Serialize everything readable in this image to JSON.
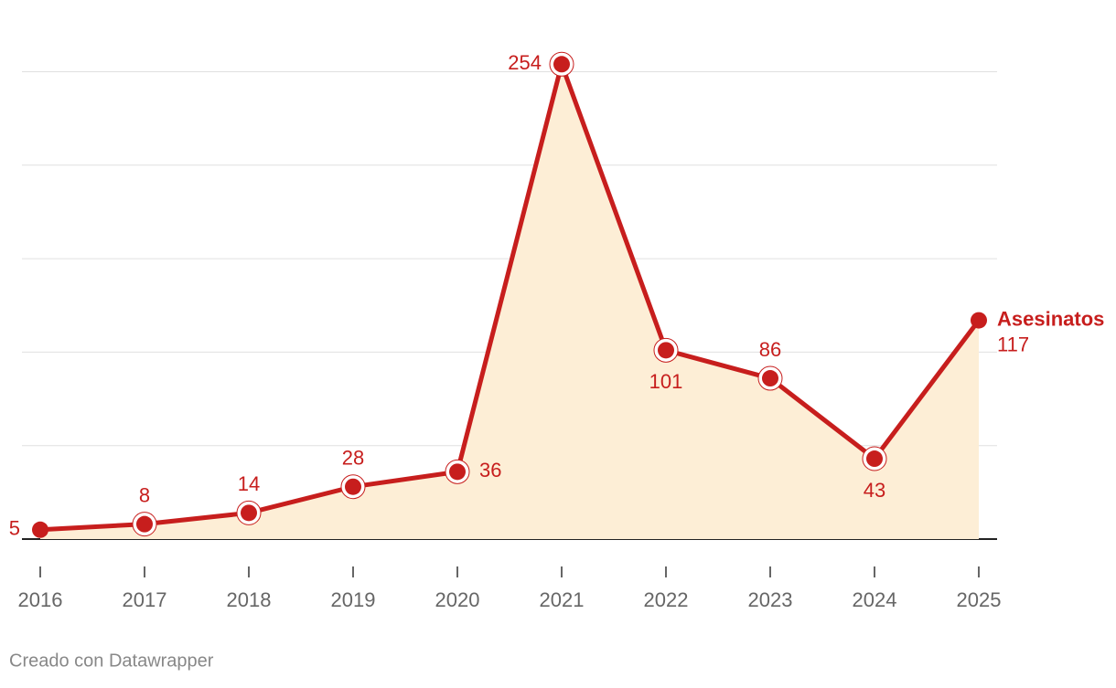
{
  "chart_data": {
    "type": "line",
    "categories": [
      "2016",
      "2017",
      "2018",
      "2019",
      "2020",
      "2021",
      "2022",
      "2023",
      "2024",
      "2025"
    ],
    "series": [
      {
        "name": "Asesinatos",
        "color": "#c71e1d",
        "area_color": "#fdeed6",
        "values": [
          5,
          8,
          14,
          28,
          36,
          254,
          101,
          86,
          43,
          117
        ]
      }
    ],
    "ylim": [
      0,
      260
    ],
    "yticks": [
      0,
      50,
      100,
      150,
      200,
      250
    ],
    "grid": true,
    "footer": "Creado con Datawrapper"
  }
}
